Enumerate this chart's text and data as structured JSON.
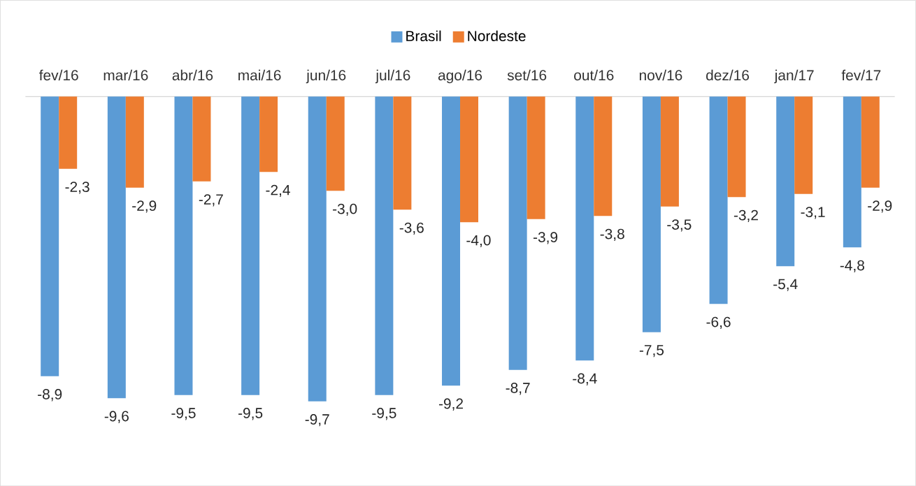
{
  "chart_data": {
    "type": "bar",
    "categories": [
      "fev/16",
      "mar/16",
      "abr/16",
      "mai/16",
      "jun/16",
      "jul/16",
      "ago/16",
      "set/16",
      "out/16",
      "nov/16",
      "dez/16",
      "jan/17",
      "fev/17"
    ],
    "series": [
      {
        "name": "Brasil",
        "color": "#5b9bd5",
        "values": [
          -8.9,
          -9.6,
          -9.5,
          -9.5,
          -9.7,
          -9.5,
          -9.2,
          -8.7,
          -8.4,
          -7.5,
          -6.6,
          -5.4,
          -4.8
        ],
        "value_labels": [
          "-8,9",
          "-9,6",
          "-9,5",
          "-9,5",
          "-9,7",
          "-9,5",
          "-9,2",
          "-8,7",
          "-8,4",
          "-7,5",
          "-6,6",
          "-5,4",
          "-4,8"
        ]
      },
      {
        "name": "Nordeste",
        "color": "#ed7d31",
        "values": [
          -2.3,
          -2.9,
          -2.7,
          -2.4,
          -3.0,
          -3.6,
          -4.0,
          -3.9,
          -3.8,
          -3.5,
          -3.2,
          -3.1,
          -2.9
        ],
        "value_labels": [
          "-2,3",
          "-2,9",
          "-2,7",
          "-2,4",
          "-3,0",
          "-3,6",
          "-4,0",
          "-3,9",
          "-3,8",
          "-3,5",
          "-3,2",
          "-3,1",
          "-2,9"
        ]
      }
    ],
    "legend": "top"
  }
}
